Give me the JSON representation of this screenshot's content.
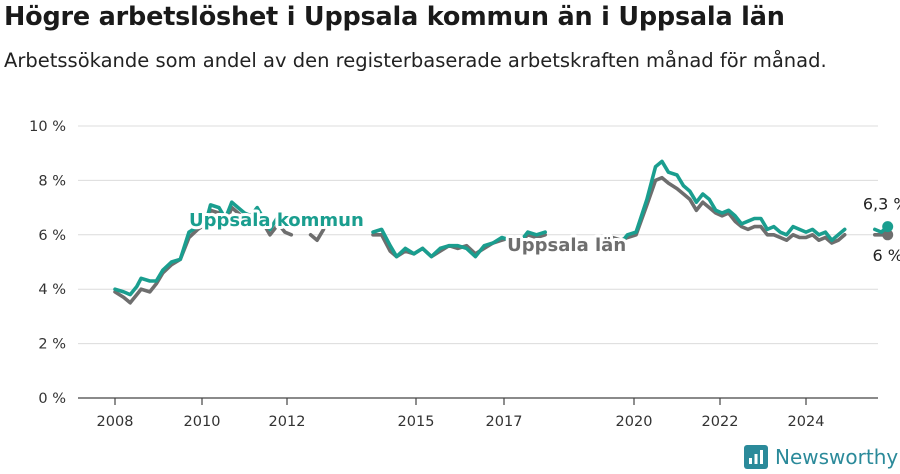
{
  "header": {
    "title": "Högre arbetslöshet i Uppsala kommun än i Uppsala län",
    "subtitle": "Arbetssökande som andel av den registerbaserade arbetskraften månad för månad."
  },
  "brand": {
    "name": "Newsworthy",
    "icon": "newsworthy-logo-icon"
  },
  "chart_data": {
    "type": "line",
    "title": "Högre arbetslöshet i Uppsala kommun än i Uppsala län",
    "subtitle": "Arbetssökande som andel av den registerbaserade arbetskraften månad för månad.",
    "ylim": [
      0,
      10
    ],
    "y_ticks": [
      0,
      2,
      4,
      6,
      8,
      10
    ],
    "y_tick_labels": [
      "0 %",
      "2 %",
      "4 %",
      "6 %",
      "8 %",
      "10 %"
    ],
    "x_ticks": [
      2008,
      2010,
      2012,
      2015,
      2017,
      2020,
      2022,
      2024
    ],
    "x_tick_labels": [
      "2008",
      "2010",
      "2012",
      "2015",
      "2017",
      "2020",
      "2022",
      "2024"
    ],
    "xlim": [
      2007.7,
      2025.9
    ],
    "grid": true,
    "series": [
      {
        "name": "Uppsala län",
        "color": "#6e6e6e",
        "end_label": "6 %",
        "points": [
          [
            2008.0,
            3.9
          ],
          [
            2008.2,
            3.7
          ],
          [
            2008.35,
            3.5
          ],
          [
            2008.5,
            3.8
          ],
          [
            2008.6,
            4.0
          ],
          [
            2008.8,
            3.9
          ],
          [
            2008.95,
            4.2
          ],
          [
            2009.1,
            4.6
          ],
          [
            2009.3,
            4.9
          ],
          [
            2009.5,
            5.1
          ],
          [
            2009.7,
            5.9
          ],
          [
            2009.9,
            6.2
          ],
          [
            2010.1,
            6.4
          ],
          [
            2010.2,
            6.9
          ],
          [
            2010.4,
            6.8
          ],
          [
            2010.55,
            6.4
          ],
          [
            2010.7,
            7.0
          ],
          [
            2010.85,
            6.8
          ],
          [
            2011.0,
            6.6
          ],
          [
            2011.15,
            6.5
          ],
          [
            2011.3,
            6.8
          ],
          [
            2011.45,
            6.4
          ],
          [
            2011.6,
            6.0
          ],
          [
            2011.8,
            6.4
          ],
          [
            2011.95,
            6.1
          ],
          [
            2012.1,
            6.0
          ]
        ],
        "points_2": [
          [
            2012.55,
            6.0
          ],
          [
            2012.7,
            5.8
          ],
          [
            2012.85,
            6.2
          ]
        ],
        "points_3": [
          [
            2014.0,
            6.0
          ],
          [
            2014.2,
            6.0
          ],
          [
            2014.4,
            5.4
          ],
          [
            2014.55,
            5.2
          ],
          [
            2014.75,
            5.4
          ],
          [
            2014.95,
            5.3
          ],
          [
            2015.15,
            5.5
          ],
          [
            2015.35,
            5.2
          ],
          [
            2015.55,
            5.4
          ],
          [
            2015.75,
            5.6
          ],
          [
            2015.95,
            5.5
          ],
          [
            2016.15,
            5.6
          ],
          [
            2016.35,
            5.3
          ],
          [
            2016.55,
            5.5
          ],
          [
            2016.75,
            5.7
          ],
          [
            2016.95,
            5.8
          ],
          [
            2017.15,
            5.9
          ],
          [
            2017.35,
            5.7
          ],
          [
            2017.55,
            6.0
          ],
          [
            2017.75,
            5.9
          ],
          [
            2017.95,
            6.0
          ]
        ],
        "points_4": [
          [
            2019.5,
            5.9
          ],
          [
            2019.7,
            5.8
          ],
          [
            2019.85,
            5.9
          ],
          [
            2020.05,
            6.0
          ],
          [
            2020.3,
            7.1
          ],
          [
            2020.5,
            8.0
          ],
          [
            2020.65,
            8.1
          ],
          [
            2020.8,
            7.9
          ],
          [
            2021.0,
            7.7
          ],
          [
            2021.15,
            7.5
          ],
          [
            2021.3,
            7.3
          ],
          [
            2021.45,
            6.9
          ],
          [
            2021.6,
            7.2
          ],
          [
            2021.75,
            7.0
          ],
          [
            2021.9,
            6.8
          ],
          [
            2022.05,
            6.7
          ],
          [
            2022.2,
            6.8
          ],
          [
            2022.35,
            6.5
          ],
          [
            2022.5,
            6.3
          ],
          [
            2022.65,
            6.2
          ],
          [
            2022.8,
            6.3
          ],
          [
            2022.95,
            6.3
          ],
          [
            2023.1,
            6.0
          ],
          [
            2023.25,
            6.0
          ],
          [
            2023.4,
            5.9
          ],
          [
            2023.55,
            5.8
          ],
          [
            2023.7,
            6.0
          ],
          [
            2023.85,
            5.9
          ],
          [
            2024.0,
            5.9
          ],
          [
            2024.15,
            6.0
          ],
          [
            2024.3,
            5.8
          ],
          [
            2024.45,
            5.9
          ],
          [
            2024.6,
            5.7
          ],
          [
            2024.75,
            5.8
          ],
          [
            2024.9,
            6.0
          ]
        ],
        "points_5": [
          [
            2025.6,
            6.0
          ],
          [
            2025.75,
            6.0
          ],
          [
            2025.9,
            6.0
          ]
        ]
      },
      {
        "name": "Uppsala kommun",
        "color": "#1a9e8f",
        "end_label": "6,3 %",
        "points": [
          [
            2008.0,
            4.0
          ],
          [
            2008.2,
            3.9
          ],
          [
            2008.35,
            3.8
          ],
          [
            2008.5,
            4.1
          ],
          [
            2008.6,
            4.4
          ],
          [
            2008.8,
            4.3
          ],
          [
            2008.95,
            4.3
          ],
          [
            2009.1,
            4.7
          ],
          [
            2009.3,
            5.0
          ],
          [
            2009.5,
            5.1
          ],
          [
            2009.7,
            6.1
          ],
          [
            2009.9,
            6.3
          ],
          [
            2010.1,
            6.5
          ],
          [
            2010.2,
            7.1
          ],
          [
            2010.4,
            7.0
          ],
          [
            2010.55,
            6.6
          ],
          [
            2010.7,
            7.2
          ],
          [
            2010.85,
            7.0
          ],
          [
            2011.0,
            6.8
          ],
          [
            2011.15,
            6.7
          ],
          [
            2011.3,
            7.0
          ],
          [
            2011.45,
            6.6
          ],
          [
            2011.6,
            6.2
          ],
          [
            2011.8,
            6.7
          ],
          [
            2011.95,
            6.5
          ],
          [
            2012.1,
            6.5
          ]
        ],
        "points_2": [
          [
            2012.55,
            6.5
          ],
          [
            2012.7,
            6.3
          ],
          [
            2012.85,
            6.6
          ]
        ],
        "points_3": [
          [
            2014.0,
            6.1
          ],
          [
            2014.2,
            6.2
          ],
          [
            2014.4,
            5.6
          ],
          [
            2014.55,
            5.2
          ],
          [
            2014.75,
            5.5
          ],
          [
            2014.95,
            5.3
          ],
          [
            2015.15,
            5.5
          ],
          [
            2015.35,
            5.2
          ],
          [
            2015.55,
            5.5
          ],
          [
            2015.75,
            5.6
          ],
          [
            2015.95,
            5.6
          ],
          [
            2016.15,
            5.5
          ],
          [
            2016.35,
            5.2
          ],
          [
            2016.55,
            5.6
          ],
          [
            2016.75,
            5.7
          ],
          [
            2016.95,
            5.9
          ],
          [
            2017.15,
            5.8
          ],
          [
            2017.35,
            5.7
          ],
          [
            2017.55,
            6.1
          ],
          [
            2017.75,
            6.0
          ],
          [
            2017.95,
            6.1
          ]
        ],
        "points_4": [
          [
            2019.5,
            5.8
          ],
          [
            2019.7,
            5.7
          ],
          [
            2019.85,
            6.0
          ],
          [
            2020.05,
            6.1
          ],
          [
            2020.3,
            7.3
          ],
          [
            2020.5,
            8.5
          ],
          [
            2020.65,
            8.7
          ],
          [
            2020.8,
            8.3
          ],
          [
            2021.0,
            8.2
          ],
          [
            2021.15,
            7.8
          ],
          [
            2021.3,
            7.6
          ],
          [
            2021.45,
            7.2
          ],
          [
            2021.6,
            7.5
          ],
          [
            2021.75,
            7.3
          ],
          [
            2021.9,
            6.9
          ],
          [
            2022.05,
            6.8
          ],
          [
            2022.2,
            6.9
          ],
          [
            2022.35,
            6.7
          ],
          [
            2022.5,
            6.4
          ],
          [
            2022.65,
            6.5
          ],
          [
            2022.8,
            6.6
          ],
          [
            2022.95,
            6.6
          ],
          [
            2023.1,
            6.2
          ],
          [
            2023.25,
            6.3
          ],
          [
            2023.4,
            6.1
          ],
          [
            2023.55,
            6.0
          ],
          [
            2023.7,
            6.3
          ],
          [
            2023.85,
            6.2
          ],
          [
            2024.0,
            6.1
          ],
          [
            2024.15,
            6.2
          ],
          [
            2024.3,
            6.0
          ],
          [
            2024.45,
            6.1
          ],
          [
            2024.6,
            5.8
          ],
          [
            2024.75,
            6.0
          ],
          [
            2024.9,
            6.2
          ]
        ],
        "points_5": [
          [
            2025.6,
            6.2
          ],
          [
            2025.75,
            6.1
          ],
          [
            2025.9,
            6.3
          ]
        ]
      }
    ],
    "annotations": [
      {
        "text": "Uppsala kommun",
        "series": "Uppsala kommun",
        "x": 2013.8,
        "y": 6.1
      },
      {
        "text": "Uppsala län",
        "series": "Uppsala län",
        "x": 2019.3,
        "y": 5.4
      }
    ]
  }
}
